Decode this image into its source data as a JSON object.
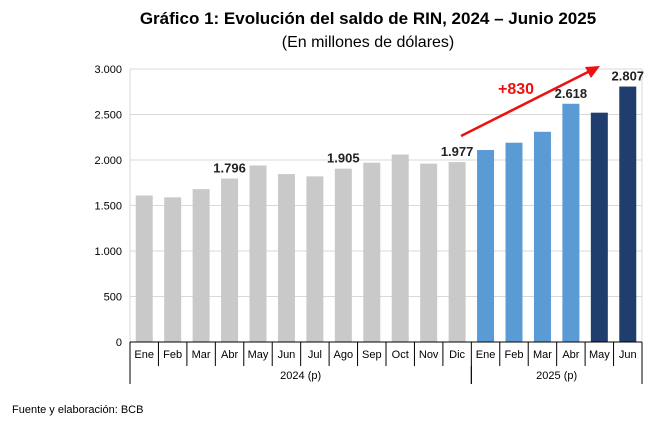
{
  "chart_data": {
    "type": "bar",
    "title": "Gráfico 1: Evolución del saldo de RIN, 2024 – Junio 2025",
    "subtitle": "(En millones de dólares)",
    "categories": [
      "Ene",
      "Feb",
      "Mar",
      "Abr",
      "May",
      "Jun",
      "Jul",
      "Ago",
      "Sep",
      "Oct",
      "Nov",
      "Dic",
      "Ene",
      "Feb",
      "Mar",
      "Abr",
      "May",
      "Jun"
    ],
    "values": [
      1610,
      1590,
      1680,
      1796,
      1940,
      1845,
      1820,
      1905,
      1970,
      2060,
      1960,
      1977,
      2110,
      2190,
      2310,
      2618,
      2520,
      2807
    ],
    "bar_colors": [
      "#c9c9c9",
      "#c9c9c9",
      "#c9c9c9",
      "#c9c9c9",
      "#c9c9c9",
      "#c9c9c9",
      "#c9c9c9",
      "#c9c9c9",
      "#c9c9c9",
      "#c9c9c9",
      "#c9c9c9",
      "#c9c9c9",
      "#5b9bd5",
      "#5b9bd5",
      "#5b9bd5",
      "#5b9bd5",
      "#1f3e6e",
      "#1f3e6e"
    ],
    "data_labels": [
      {
        "index": 3,
        "text": "1.796"
      },
      {
        "index": 7,
        "text": "1.905"
      },
      {
        "index": 11,
        "text": "1.977"
      },
      {
        "index": 15,
        "text": "2.618"
      },
      {
        "index": 17,
        "text": "2.807"
      }
    ],
    "groups": [
      {
        "label": "2024 (p)",
        "start": 0,
        "end": 11
      },
      {
        "label": "2025 (p)",
        "start": 12,
        "end": 17
      }
    ],
    "yticks": [
      {
        "value": 0,
        "label": "0"
      },
      {
        "value": 500,
        "label": "500"
      },
      {
        "value": 1000,
        "label": "1.000"
      },
      {
        "value": 1500,
        "label": "1.500"
      },
      {
        "value": 2000,
        "label": "2.000"
      },
      {
        "value": 2500,
        "label": "2.500"
      },
      {
        "value": 3000,
        "label": "3.000"
      }
    ],
    "ylim": [
      0,
      3000
    ],
    "grid": true,
    "annotation": {
      "text": "+830",
      "color": "#ee1111"
    }
  },
  "footer": {
    "source": "Fuente y elaboración: BCB"
  }
}
